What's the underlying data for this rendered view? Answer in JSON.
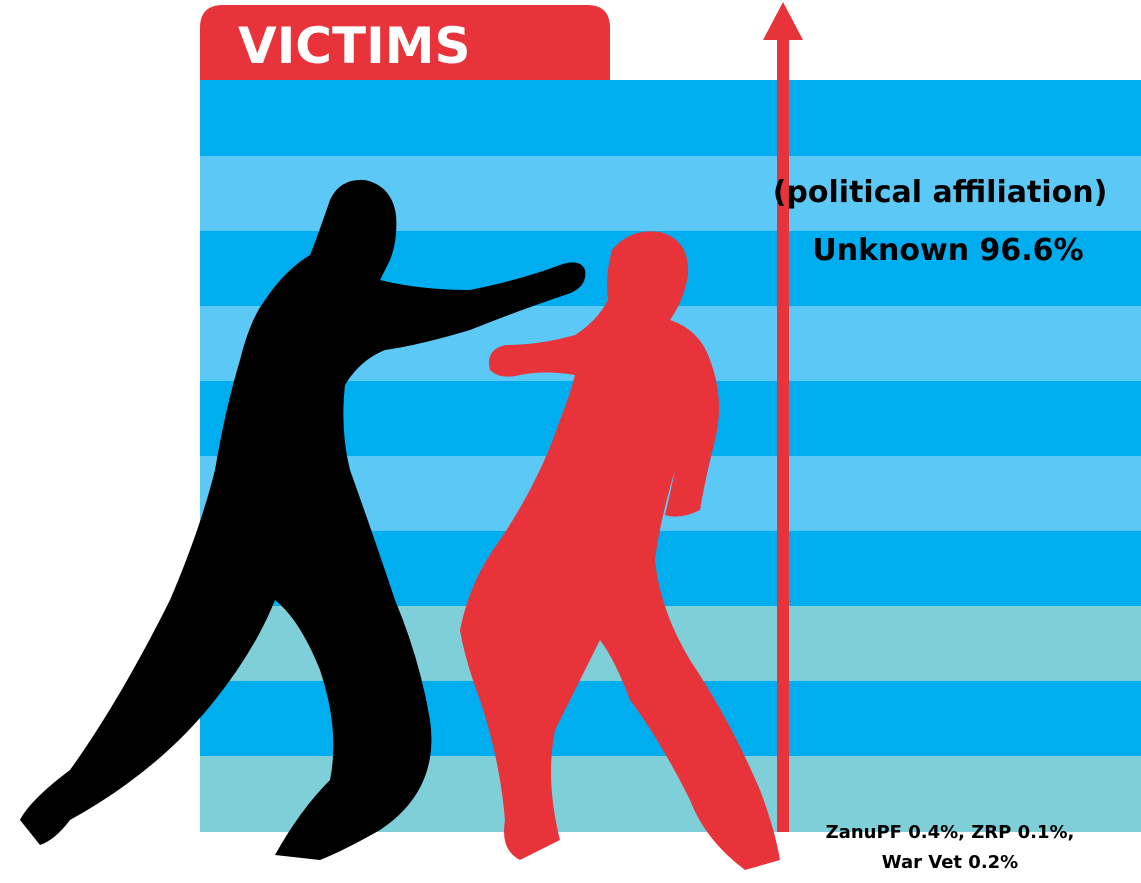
{
  "header": {
    "title": "VICTIMS"
  },
  "labels": {
    "category": "(political affiliation)",
    "main": "Unknown 96.6%",
    "minor": [
      "ZanuPF 0.4%, ZRP 0.1%,",
      "War Vet 0.2%"
    ]
  }
}
